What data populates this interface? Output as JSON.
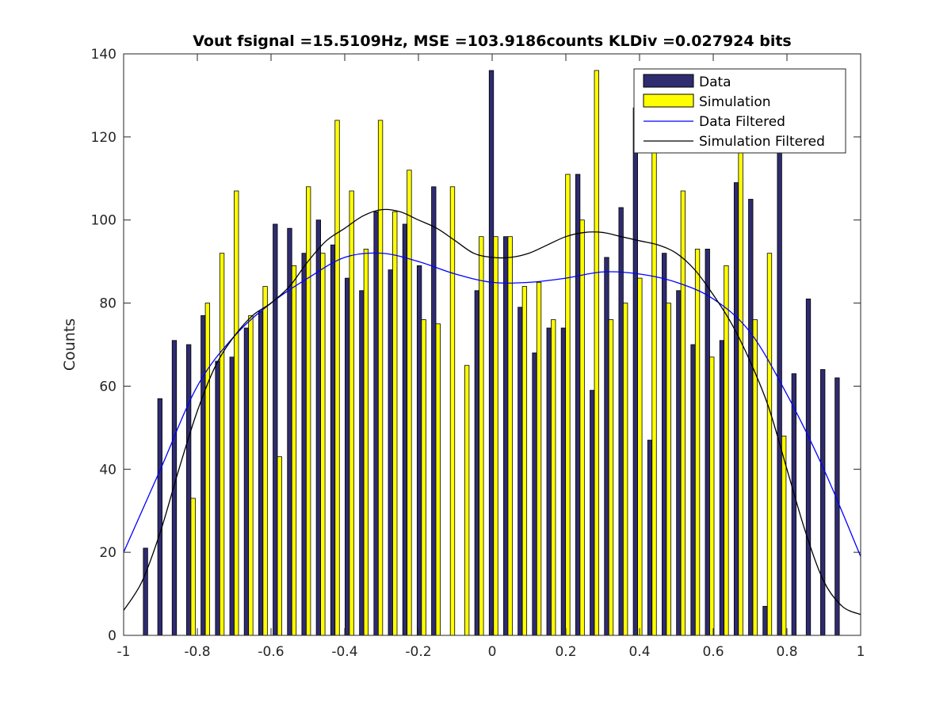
{
  "chart_data": {
    "type": "bar",
    "title": "Vout fsignal =15.5109Hz, MSE =103.9186counts KLDiv =0.027924 bits",
    "xlabel": "",
    "ylabel": "Counts",
    "xlim": [
      -1,
      1
    ],
    "ylim": [
      0,
      140
    ],
    "xticks": [
      -1,
      -0.8,
      -0.6,
      -0.4,
      -0.2,
      0,
      0.2,
      0.4,
      0.6,
      0.8,
      1
    ],
    "xtick_labels": [
      "-1",
      "-0.8",
      "-0.6",
      "-0.4",
      "-0.2",
      "0",
      "0.2",
      "0.4",
      "0.6",
      "0.8",
      "1"
    ],
    "yticks": [
      0,
      20,
      40,
      60,
      80,
      100,
      120,
      140
    ],
    "ytick_labels": [
      "0",
      "20",
      "40",
      "60",
      "80",
      "100",
      "120",
      "140"
    ],
    "grid": false,
    "legend_position": "top-right",
    "colors": {
      "data": "#2e2b70",
      "simulation": "#ffff00",
      "data_filtered": "#0000ff",
      "simulation_filtered": "#000000"
    },
    "x": [
      -0.9347,
      -0.8956,
      -0.8565,
      -0.8174,
      -0.7783,
      -0.7391,
      -0.7,
      -0.6609,
      -0.6218,
      -0.5827,
      -0.5436,
      -0.5045,
      -0.4654,
      -0.4263,
      -0.3872,
      -0.3481,
      -0.309,
      -0.2699,
      -0.2308,
      -0.1917,
      -0.1526,
      -0.1135,
      -0.0744,
      -0.0353,
      0.0038,
      0.0429,
      0.082,
      0.1211,
      0.1602,
      0.1993,
      0.2384,
      0.2775,
      0.3166,
      0.3557,
      0.3948,
      0.4339,
      0.473,
      0.5121,
      0.5512,
      0.5903,
      0.6294,
      0.6685,
      0.7076,
      0.7467,
      0.7858,
      0.8249,
      0.864,
      0.9031,
      0.9422
    ],
    "series": [
      {
        "name": "Data",
        "type": "bar",
        "values": [
          21,
          57,
          71,
          70,
          77,
          66,
          67,
          74,
          78,
          99,
          98,
          92,
          100,
          94,
          86,
          83,
          102,
          88,
          99,
          89,
          108,
          0,
          0,
          83,
          136,
          96,
          79,
          68,
          74,
          74,
          111,
          59,
          91,
          103,
          127,
          47,
          92,
          83,
          70,
          93,
          71,
          109,
          105,
          7,
          133,
          63,
          81,
          64,
          62
        ]
      },
      {
        "name": "Simulation",
        "type": "bar",
        "values": [
          0,
          0,
          0,
          33,
          80,
          92,
          107,
          77,
          84,
          43,
          89,
          108,
          92,
          124,
          107,
          93,
          124,
          102,
          112,
          76,
          75,
          108,
          65,
          96,
          96,
          96,
          84,
          85,
          76,
          111,
          100,
          136,
          76,
          80,
          86,
          118,
          80,
          107,
          93,
          67,
          89,
          120,
          76,
          92,
          48,
          0,
          0,
          0,
          0
        ]
      },
      {
        "name": "Data Filtered",
        "type": "line",
        "x": [
          -1,
          -0.9,
          -0.8,
          -0.7,
          -0.6,
          -0.5,
          -0.4,
          -0.3,
          -0.2,
          -0.1,
          0,
          0.1,
          0.2,
          0.3,
          0.4,
          0.5,
          0.6,
          0.7,
          0.8,
          0.9,
          1
        ],
        "values": [
          20,
          40,
          60,
          72,
          80,
          86,
          91,
          92,
          90,
          87,
          85,
          85,
          86,
          87.5,
          87,
          85,
          81,
          73,
          58,
          40,
          19
        ]
      },
      {
        "name": "Simulation Filtered",
        "type": "line",
        "x": [
          -1,
          -0.95,
          -0.9,
          -0.85,
          -0.8,
          -0.75,
          -0.7,
          -0.65,
          -0.6,
          -0.55,
          -0.5,
          -0.45,
          -0.4,
          -0.35,
          -0.3,
          -0.25,
          -0.2,
          -0.15,
          -0.1,
          -0.05,
          0,
          0.05,
          0.1,
          0.15,
          0.2,
          0.25,
          0.3,
          0.35,
          0.4,
          0.45,
          0.5,
          0.55,
          0.6,
          0.65,
          0.7,
          0.75,
          0.8,
          0.85,
          0.9,
          0.95,
          1
        ],
        "values": [
          6,
          13,
          25,
          40,
          54,
          65,
          72,
          77,
          80,
          84,
          90,
          95,
          98,
          101,
          102.5,
          102,
          100,
          98,
          95,
          92,
          91,
          91,
          92,
          94,
          96,
          97,
          97,
          96,
          95,
          94,
          92,
          88,
          82,
          75,
          66,
          55,
          40,
          25,
          13,
          7,
          5
        ]
      }
    ]
  }
}
